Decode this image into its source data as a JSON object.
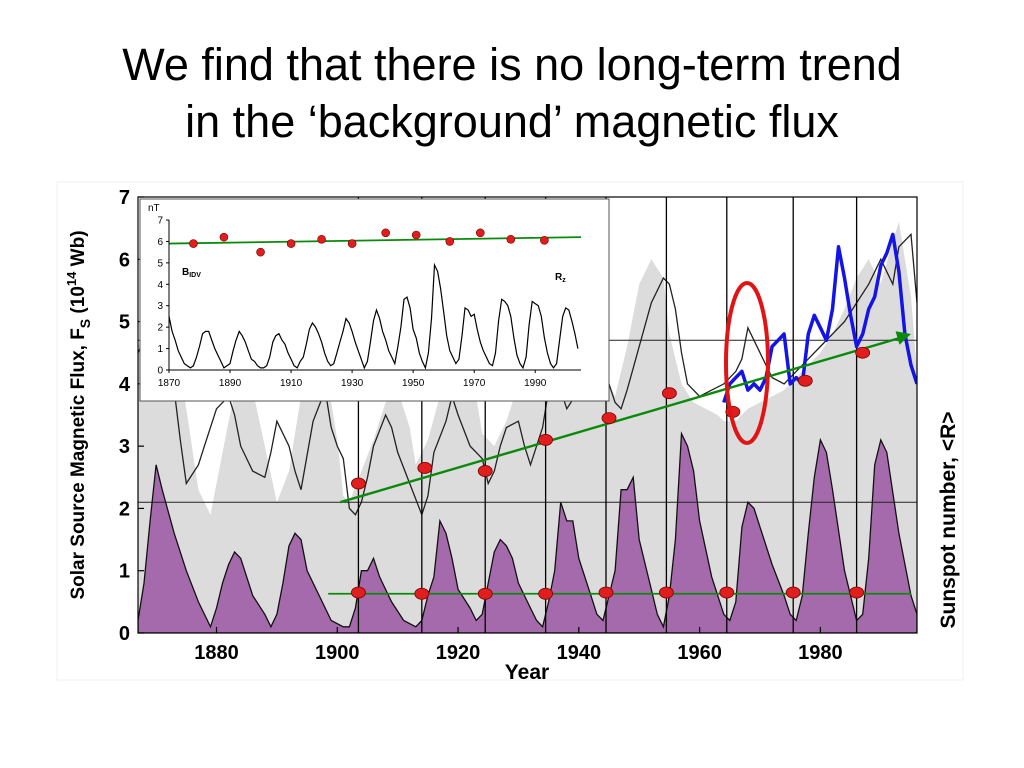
{
  "slide": {
    "title_line1": "We find that there is no long-term trend",
    "title_line2": "in the ‘background’ magnetic flux"
  },
  "chart_data": [
    {
      "type": "area",
      "xlabel": "Year",
      "ylabel": "Solar Source Magnetic Flux, F",
      "ylabel_sub": "S",
      "ylabel_unit_open": " (10",
      "ylabel_unit_exp": "14",
      "ylabel_unit_close": " Wb)",
      "y2label": "Sunspot number, <R>",
      "xlim": [
        1867,
        1996
      ],
      "ylim": [
        0,
        7
      ],
      "xticks": [
        "1880",
        "1900",
        "1920",
        "1940",
        "1960",
        "1980"
      ],
      "yticks": [
        "0",
        "1",
        "2",
        "3",
        "4",
        "5",
        "6",
        "7"
      ],
      "colors": {
        "flux_fill": "#dcdcdc",
        "sunspot_fill": "#a56aab",
        "recent_flux": "#1414e6",
        "markers": "#e01e1e",
        "trend": "#0a8a0a",
        "highlight": "#e01414"
      },
      "series": [
        {
          "kind": "flux_area",
          "x": [
            1867,
            1869,
            1871,
            1873,
            1875,
            1877,
            1879,
            1880,
            1882,
            1884,
            1886,
            1888,
            1890,
            1892,
            1894,
            1896,
            1898,
            1900,
            1901,
            1902,
            1904,
            1906,
            1908,
            1910,
            1912,
            1913,
            1915,
            1917,
            1919,
            1921,
            1923,
            1924,
            1926,
            1928,
            1930,
            1932,
            1934,
            1935,
            1937,
            1939,
            1941,
            1943,
            1945,
            1946,
            1948,
            1950,
            1952,
            1954,
            1955,
            1957,
            1959,
            1961,
            1963,
            1964,
            1966,
            1968,
            1970,
            1972,
            1974,
            1976,
            1978,
            1980,
            1982,
            1984,
            1986,
            1988,
            1990,
            1992,
            1993,
            1995,
            1996
          ],
          "y": [
            4.6,
            5.0,
            5.2,
            4.8,
            3.6,
            2.3,
            1.9,
            2.4,
            3.4,
            4.3,
            3.9,
            3.0,
            2.1,
            2.6,
            3.8,
            4.9,
            4.3,
            3.1,
            2.2,
            2.1,
            2.6,
            3.1,
            3.7,
            3.9,
            3.3,
            2.7,
            3.1,
            3.8,
            4.3,
            4.5,
            3.8,
            3.2,
            3.0,
            3.4,
            4.0,
            4.5,
            4.8,
            4.1,
            3.9,
            4.4,
            4.7,
            4.4,
            4.0,
            3.8,
            4.6,
            5.6,
            6.0,
            5.7,
            4.8,
            4.0,
            3.7,
            3.6,
            3.5,
            3.4,
            3.4,
            3.6,
            3.7,
            3.8,
            3.9,
            4.1,
            4.3,
            4.5,
            4.8,
            5.2,
            5.7,
            6.0,
            5.6,
            6.3,
            6.6,
            5.4,
            4.2
          ]
        },
        {
          "kind": "flux_line",
          "x": [
            1867,
            1869,
            1870,
            1872,
            1873,
            1874,
            1875,
            1877,
            1878,
            1880,
            1882,
            1883,
            1884,
            1886,
            1888,
            1889,
            1890,
            1892,
            1893,
            1894,
            1896,
            1898,
            1899,
            1900,
            1901,
            1902,
            1903,
            1904,
            1905,
            1906,
            1908,
            1909,
            1910,
            1912,
            1914,
            1915,
            1916,
            1918,
            1919,
            1920,
            1922,
            1924,
            1925,
            1926,
            1927,
            1928,
            1930,
            1931,
            1932,
            1934,
            1935,
            1936,
            1938,
            1940,
            1942,
            1944,
            1945,
            1946,
            1947,
            1948,
            1950,
            1952,
            1954,
            1955,
            1956,
            1957,
            1958,
            1960,
            1962,
            1964,
            1966,
            1967,
            1968,
            1970,
            1971,
            1972,
            1974,
            1976,
            1978,
            1980,
            1982,
            1984,
            1986,
            1988,
            1990,
            1992,
            1993,
            1995,
            1996
          ],
          "y": [
            4.5,
            4.9,
            5.1,
            4.4,
            3.9,
            3.1,
            2.4,
            2.7,
            3.0,
            3.6,
            3.8,
            3.5,
            3.0,
            2.6,
            2.5,
            2.9,
            3.4,
            3.0,
            2.6,
            2.3,
            3.4,
            3.9,
            3.3,
            3.0,
            2.8,
            2.0,
            1.9,
            2.1,
            2.5,
            3.0,
            3.5,
            3.3,
            2.9,
            2.4,
            1.9,
            2.2,
            2.9,
            3.4,
            3.8,
            3.5,
            3.0,
            2.8,
            2.4,
            2.6,
            3.0,
            3.3,
            3.4,
            3.0,
            2.7,
            3.3,
            3.9,
            4.2,
            3.6,
            3.9,
            4.2,
            4.5,
            4.0,
            3.7,
            3.6,
            3.9,
            4.6,
            5.3,
            5.7,
            5.6,
            5.2,
            4.5,
            4.0,
            3.8,
            3.9,
            4.0,
            4.2,
            4.4,
            4.9,
            4.5,
            4.3,
            4.1,
            4.0,
            4.2,
            4.4,
            4.6,
            4.8,
            5.0,
            5.3,
            5.6,
            6.0,
            5.6,
            6.2,
            6.4,
            5.3
          ]
        },
        {
          "kind": "flux_recent",
          "x": [
            1964,
            1965,
            1966,
            1967,
            1968,
            1969,
            1970,
            1971,
            1972,
            1973,
            1974,
            1975,
            1976,
            1977,
            1978,
            1979,
            1980,
            1981,
            1982,
            1983,
            1984,
            1985,
            1986,
            1987,
            1988,
            1989,
            1990,
            1991,
            1992,
            1993,
            1994,
            1995,
            1996
          ],
          "y": [
            3.7,
            4.0,
            4.1,
            4.2,
            3.9,
            4.0,
            3.9,
            4.1,
            4.6,
            4.7,
            4.8,
            4.0,
            4.1,
            4.0,
            4.8,
            5.1,
            4.9,
            4.7,
            5.2,
            6.2,
            5.7,
            5.1,
            4.6,
            4.8,
            5.2,
            5.4,
            5.9,
            6.1,
            6.4,
            5.8,
            4.8,
            4.3,
            4.0
          ]
        },
        {
          "kind": "sunspot_area",
          "x": [
            1867,
            1868,
            1869,
            1870,
            1871,
            1873,
            1875,
            1877,
            1879,
            1880,
            1881,
            1882,
            1883,
            1884,
            1886,
            1888,
            1889,
            1890,
            1891,
            1892,
            1893,
            1894,
            1895,
            1897,
            1899,
            1901,
            1902,
            1903,
            1904,
            1905,
            1906,
            1907,
            1909,
            1911,
            1913,
            1914,
            1915,
            1916,
            1917,
            1918,
            1919,
            1920,
            1922,
            1923,
            1924,
            1925,
            1926,
            1927,
            1928,
            1929,
            1930,
            1932,
            1933,
            1934,
            1935,
            1936,
            1937,
            1938,
            1939,
            1940,
            1942,
            1943,
            1944,
            1946,
            1947,
            1948,
            1949,
            1950,
            1952,
            1953,
            1954,
            1955,
            1956,
            1957,
            1958,
            1959,
            1960,
            1962,
            1964,
            1965,
            1966,
            1967,
            1968,
            1969,
            1970,
            1972,
            1974,
            1975,
            1976,
            1977,
            1978,
            1979,
            1980,
            1981,
            1982,
            1984,
            1986,
            1987,
            1988,
            1989,
            1990,
            1991,
            1993,
            1995,
            1996
          ],
          "y": [
            0.2,
            0.8,
            1.8,
            2.7,
            2.3,
            1.6,
            1.0,
            0.5,
            0.1,
            0.4,
            0.8,
            1.1,
            1.3,
            1.2,
            0.6,
            0.3,
            0.1,
            0.3,
            0.8,
            1.4,
            1.6,
            1.5,
            1.0,
            0.6,
            0.2,
            0.1,
            0.1,
            0.4,
            1.0,
            1.0,
            1.2,
            0.9,
            0.5,
            0.2,
            0.1,
            0.2,
            0.6,
            0.9,
            1.8,
            1.6,
            1.2,
            0.7,
            0.4,
            0.2,
            0.3,
            0.8,
            1.3,
            1.5,
            1.4,
            1.2,
            0.8,
            0.4,
            0.2,
            0.1,
            0.5,
            1.0,
            2.1,
            1.8,
            1.8,
            1.2,
            0.6,
            0.3,
            0.2,
            1.0,
            2.3,
            2.3,
            2.5,
            1.5,
            0.7,
            0.3,
            0.1,
            0.6,
            1.5,
            3.2,
            3.0,
            2.6,
            1.8,
            0.9,
            0.3,
            0.2,
            0.5,
            1.7,
            2.1,
            2.0,
            1.7,
            1.1,
            0.6,
            0.3,
            0.2,
            0.6,
            1.6,
            2.5,
            3.1,
            2.9,
            2.3,
            1.0,
            0.2,
            0.3,
            1.2,
            2.7,
            3.1,
            2.9,
            1.6,
            0.6,
            0.3
          ]
        },
        {
          "kind": "flux_minima",
          "x": [
            1903.5,
            1914.5,
            1924.5,
            1934.5,
            1945,
            1955,
            1965.5,
            1977.5,
            1987
          ],
          "y": [
            2.4,
            2.65,
            2.6,
            3.1,
            3.45,
            3.85,
            3.55,
            4.05,
            4.5
          ]
        },
        {
          "kind": "sunspot_minima",
          "x": [
            1903.5,
            1914,
            1924.5,
            1934.5,
            1944.5,
            1954.5,
            1964.5,
            1975.5,
            1986
          ],
          "y": [
            0.65,
            0.63,
            0.63,
            0.63,
            0.65,
            0.65,
            0.65,
            0.65,
            0.65
          ]
        },
        {
          "kind": "trend",
          "x": [
            1900.5,
            1995
          ],
          "y": [
            2.1,
            4.8
          ]
        },
        {
          "kind": "flat_trend",
          "x": [
            1898.5,
            1995
          ],
          "y": [
            0.63,
            0.63
          ]
        }
      ],
      "reference_lines": [
        4.7,
        2.1
      ],
      "cycle_min_lines": [
        1903.5,
        1914,
        1924.5,
        1934.5,
        1944.5,
        1954.5,
        1964.5,
        1975.5,
        1986
      ]
    },
    {
      "type": "line",
      "y_unit": "nT",
      "label_left": "B",
      "label_left_sub": "IDV",
      "label_right": "R",
      "label_right_sub": "z",
      "xlim": [
        1870,
        2005
      ],
      "ylim": [
        0,
        7
      ],
      "xticks": [
        "1870",
        "1890",
        "1910",
        "1930",
        "1950",
        "1970",
        "1990"
      ],
      "yticks": [
        "0",
        "1",
        "2",
        "3",
        "4",
        "5",
        "6",
        "7"
      ],
      "series": [
        {
          "kind": "bidv_points",
          "x": [
            1878,
            1888,
            1900,
            1910,
            1920,
            1930,
            1941,
            1951,
            1962,
            1972,
            1982,
            1993
          ],
          "y": [
            5.9,
            6.2,
            5.5,
            5.9,
            6.1,
            5.9,
            6.4,
            6.3,
            6.0,
            6.4,
            6.1,
            6.05
          ]
        },
        {
          "kind": "bidv_trend",
          "x": [
            1870,
            2005
          ],
          "y": [
            5.9,
            6.2
          ]
        },
        {
          "kind": "rz",
          "x": [
            1870,
            1871,
            1872,
            1873,
            1874,
            1875,
            1876,
            1877,
            1878,
            1879,
            1880,
            1881,
            1882,
            1883,
            1884,
            1885,
            1886,
            1887,
            1888,
            1889,
            1890,
            1891,
            1892,
            1893,
            1894,
            1895,
            1896,
            1897,
            1898,
            1899,
            1900,
            1901,
            1902,
            1903,
            1904,
            1905,
            1906,
            1907,
            1908,
            1909,
            1910,
            1911,
            1912,
            1913,
            1914,
            1915,
            1916,
            1917,
            1918,
            1919,
            1920,
            1921,
            1922,
            1923,
            1924,
            1925,
            1926,
            1927,
            1928,
            1929,
            1930,
            1931,
            1932,
            1933,
            1934,
            1935,
            1936,
            1937,
            1938,
            1939,
            1940,
            1941,
            1942,
            1943,
            1944,
            1945,
            1946,
            1947,
            1948,
            1949,
            1950,
            1951,
            1952,
            1953,
            1954,
            1955,
            1956,
            1957,
            1958,
            1959,
            1960,
            1961,
            1962,
            1963,
            1964,
            1965,
            1966,
            1967,
            1968,
            1969,
            1970,
            1971,
            1972,
            1973,
            1974,
            1975,
            1976,
            1977,
            1978,
            1979,
            1980,
            1981,
            1982,
            1983,
            1984,
            1985,
            1986,
            1987,
            1988,
            1989,
            1990,
            1991,
            1992,
            1993,
            1994,
            1995,
            1996,
            1997,
            1998,
            1999,
            2000,
            2001,
            2002,
            2003,
            2004
          ],
          "y": [
            2.5,
            1.8,
            1.4,
            0.9,
            0.6,
            0.3,
            0.2,
            0.1,
            0.2,
            0.6,
            1.1,
            1.7,
            1.8,
            1.8,
            1.4,
            1.0,
            0.7,
            0.4,
            0.1,
            0.2,
            0.3,
            0.9,
            1.4,
            1.8,
            1.6,
            1.3,
            0.9,
            0.5,
            0.4,
            0.2,
            0.1,
            0.1,
            0.2,
            0.6,
            1.3,
            1.6,
            1.7,
            1.4,
            1.2,
            0.8,
            0.5,
            0.2,
            0.1,
            0.4,
            0.6,
            1.2,
            1.9,
            2.2,
            2.0,
            1.7,
            1.3,
            0.8,
            0.4,
            0.2,
            0.3,
            0.8,
            1.3,
            1.8,
            2.4,
            2.2,
            1.8,
            1.3,
            0.9,
            0.5,
            0.1,
            0.4,
            1.3,
            2.3,
            2.8,
            2.4,
            1.8,
            1.4,
            0.9,
            0.6,
            0.3,
            1.1,
            2.0,
            3.3,
            3.4,
            2.9,
            1.9,
            1.5,
            0.8,
            0.4,
            0.1,
            0.8,
            2.4,
            4.9,
            4.6,
            3.8,
            2.7,
            1.6,
            0.9,
            0.6,
            0.3,
            0.5,
            1.6,
            2.9,
            2.8,
            2.5,
            2.6,
            1.9,
            1.3,
            0.9,
            0.6,
            0.3,
            0.2,
            0.8,
            2.3,
            3.3,
            3.2,
            3.0,
            2.5,
            1.5,
            0.7,
            0.3,
            0.1,
            0.6,
            2.1,
            3.2,
            3.1,
            3.0,
            2.5,
            1.5,
            0.8,
            0.3,
            0.1,
            0.3,
            1.4,
            2.5,
            2.9,
            2.8,
            2.3,
            1.7,
            1.0
          ]
        }
      ]
    }
  ]
}
